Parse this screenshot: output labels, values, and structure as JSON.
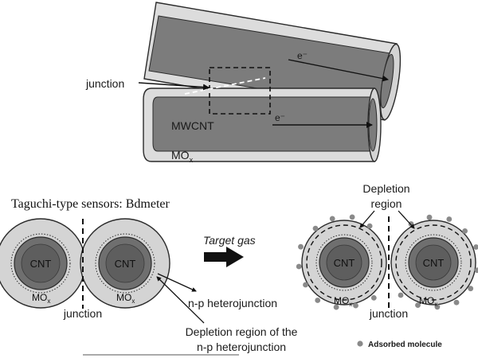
{
  "colors": {
    "tube_outer": "#d9d9d9",
    "tube_inner": "#7a7a7a",
    "tube_stroke": "#2a2a2a",
    "mox_ring": "#d4d4d4",
    "cnt_core": "#6f6f6f",
    "molecule": "#8a8a8a",
    "arrow": "#111111"
  },
  "top": {
    "junction_label": "junction",
    "mwcnt_label": "MWCNT",
    "mox_label": "MO",
    "mox_sub": "x",
    "electron_upper": "e⁻",
    "electron_lower": "e⁻"
  },
  "caption": "Taguchi-type sensors: Bdmeter",
  "bottom": {
    "left_pair": {
      "cnt_a": "CNT",
      "cnt_b": "CNT",
      "mox_a": "MO",
      "mox_a_sub": "x",
      "mox_b": "MO",
      "mox_b_sub": "x",
      "junction": "junction"
    },
    "target_gas": "Target gas",
    "right_pair": {
      "cnt_a": "CNT",
      "cnt_b": "CNT",
      "mox_a": "MO",
      "mox_a_sub": "x",
      "mox_b": "MO",
      "mox_b_sub": "x",
      "junction": "junction",
      "depletion_line1": "Depletion",
      "depletion_line2": "region"
    },
    "np_label": "n-p heterojunction",
    "depletion_np_line1": "Depletion region of the",
    "depletion_np_line2": "n-p heterojunction",
    "legend": "Adsorbed molecule"
  }
}
